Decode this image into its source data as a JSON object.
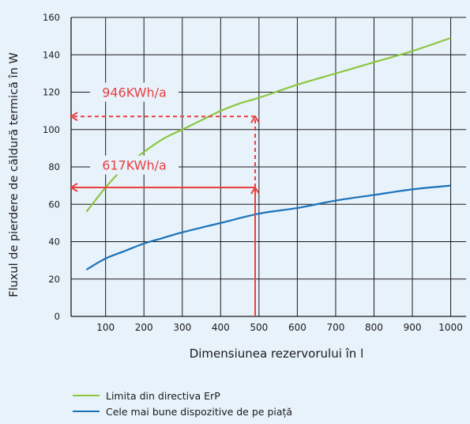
{
  "chart_data": {
    "type": "line",
    "xlabel": "Dimensiunea rezervorului în l",
    "ylabel": "Fluxul de pierdere de căldură termică în W",
    "x_ticks": [
      100,
      200,
      300,
      400,
      500,
      600,
      700,
      800,
      900,
      1000
    ],
    "y_ticks": [
      0,
      20,
      40,
      60,
      80,
      100,
      120,
      140,
      160
    ],
    "xlim": [
      10,
      1040
    ],
    "ylim": [
      0,
      160
    ],
    "grid": true,
    "legend_position": "bottom-left",
    "series": [
      {
        "name": "Limita din directiva ErP",
        "color": "#8cc63f",
        "points": [
          [
            50,
            56
          ],
          [
            100,
            69
          ],
          [
            150,
            80
          ],
          [
            200,
            88
          ],
          [
            250,
            95
          ],
          [
            300,
            100
          ],
          [
            350,
            105
          ],
          [
            400,
            110
          ],
          [
            450,
            114
          ],
          [
            500,
            117
          ],
          [
            600,
            124
          ],
          [
            700,
            130
          ],
          [
            800,
            136
          ],
          [
            900,
            142
          ],
          [
            1000,
            149
          ]
        ]
      },
      {
        "name": "Cele mai bune dispozitive de pe piață",
        "color": "#1a72b9",
        "points": [
          [
            50,
            25
          ],
          [
            100,
            31
          ],
          [
            150,
            35
          ],
          [
            200,
            39
          ],
          [
            250,
            42
          ],
          [
            300,
            45
          ],
          [
            400,
            50
          ],
          [
            500,
            55
          ],
          [
            600,
            58
          ],
          [
            700,
            62
          ],
          [
            800,
            65
          ],
          [
            900,
            68
          ],
          [
            1000,
            70
          ]
        ]
      }
    ],
    "annotations": {
      "color": "#e84040",
      "vertical_x": 490,
      "upper": {
        "label": "946KWh/a",
        "y": 107
      },
      "lower": {
        "label": "617KWh/a",
        "y": 69
      }
    }
  }
}
